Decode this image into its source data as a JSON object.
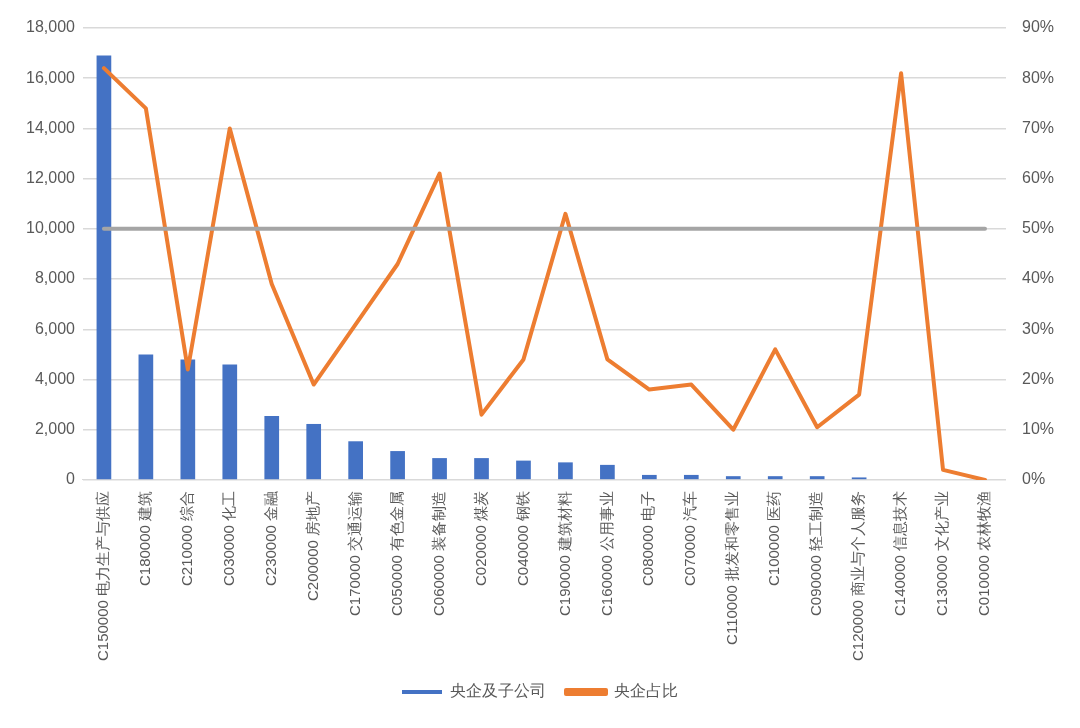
{
  "chart_data": {
    "type": "bar",
    "categories": [
      "C150000 电力生产与供应",
      "C180000 建筑",
      "C210000 综合",
      "C030000 化工",
      "C230000 金融",
      "C200000 房地产",
      "C170000 交通运输",
      "C050000 有色金属",
      "C060000 装备制造",
      "C020000 煤炭",
      "C040000 钢铁",
      "C190000 建筑材料",
      "C160000 公用事业",
      "C080000 电子",
      "C070000 汽车",
      "C110000 批发和零售业",
      "C100000 医药",
      "C090000 轻工制造",
      "C120000 商业与个人服务",
      "C140000 信息技术",
      "C130000 文化产业",
      "C010000 农林牧渔"
    ],
    "series": [
      {
        "name": "央企及子公司",
        "color": "#4472c4",
        "values": [
          16900,
          5000,
          4800,
          4600,
          2550,
          2230,
          1540,
          1150,
          870,
          870,
          770,
          700,
          600,
          200,
          200,
          150,
          150,
          150,
          100,
          0,
          0,
          0
        ]
      },
      {
        "name": "央企占比",
        "type": "line",
        "axis": "y2",
        "color": "#ed7d31",
        "values": [
          82,
          74,
          22,
          70,
          39,
          19,
          31,
          43,
          61,
          13,
          24,
          53,
          24,
          18,
          19,
          10,
          26,
          10.5,
          17,
          81,
          2,
          0
        ]
      }
    ],
    "ylim": [
      0,
      18000
    ],
    "yticks": [
      {
        "value": 0,
        "label": "0"
      },
      {
        "value": 2000,
        "label": "2,000"
      },
      {
        "value": 4000,
        "label": "4,000"
      },
      {
        "value": 6000,
        "label": "6,000"
      },
      {
        "value": 8000,
        "label": "8,000"
      },
      {
        "value": 10000,
        "label": "10,000"
      },
      {
        "value": 12000,
        "label": "12,000"
      },
      {
        "value": 14000,
        "label": "14,000"
      },
      {
        "value": 16000,
        "label": "16,000"
      },
      {
        "value": 18000,
        "label": "18,000"
      }
    ],
    "y2lim": [
      0,
      90
    ],
    "y2ticks": [
      {
        "value": 0,
        "label": "0%"
      },
      {
        "value": 10,
        "label": "10%"
      },
      {
        "value": 20,
        "label": "20%"
      },
      {
        "value": 30,
        "label": "30%"
      },
      {
        "value": 40,
        "label": "40%"
      },
      {
        "value": 50,
        "label": "50%"
      },
      {
        "value": 60,
        "label": "60%"
      },
      {
        "value": 70,
        "label": "70%"
      },
      {
        "value": 80,
        "label": "80%"
      },
      {
        "value": 90,
        "label": "90%"
      }
    ],
    "ref_lines": [
      {
        "axis": "y2",
        "value": 50,
        "color": "#a5a5a5"
      }
    ],
    "grid": "y",
    "legend": "bottom",
    "marker": "none",
    "line_style": "solid"
  }
}
